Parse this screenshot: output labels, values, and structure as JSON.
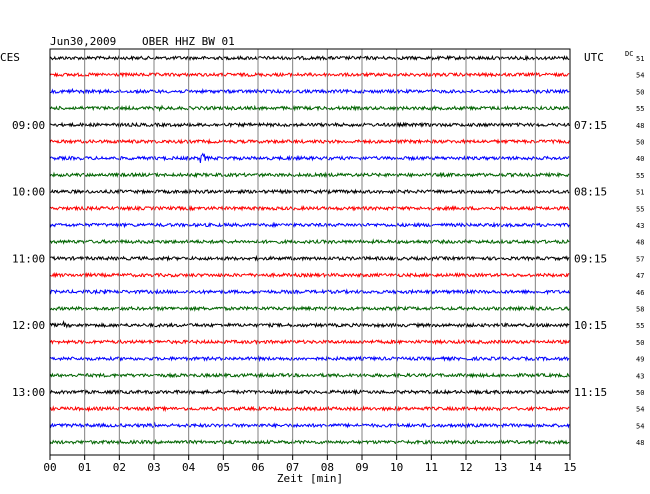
{
  "header": {
    "date": "Jun30,2009",
    "station": "OBER HHZ BW 01",
    "left_tz": "CES",
    "right_tz": "UTC",
    "dc_label": "DC"
  },
  "colors": {
    "cycle": [
      "#000000",
      "#ff0000",
      "#0000ff",
      "#006400"
    ],
    "grid": "#808080",
    "frame": "#000000",
    "text": "#000000"
  },
  "chart_data": {
    "type": "line",
    "title": "Jun30,2009   OBER HHZ BW 01",
    "xlabel": "Zeit [min]",
    "ylabel": "",
    "xlim": [
      0,
      15
    ],
    "x_ticks": [
      "00",
      "01",
      "02",
      "03",
      "04",
      "05",
      "06",
      "07",
      "08",
      "09",
      "10",
      "11",
      "12",
      "13",
      "14",
      "15"
    ],
    "grid": true,
    "trace_count": 24,
    "left_time_labels": [
      {
        "trace": 4,
        "label": "09:00"
      },
      {
        "trace": 8,
        "label": "10:00"
      },
      {
        "trace": 12,
        "label": "11:00"
      },
      {
        "trace": 16,
        "label": "12:00"
      },
      {
        "trace": 20,
        "label": "13:00"
      }
    ],
    "right_time_labels": [
      {
        "trace": 4,
        "label": "07:15"
      },
      {
        "trace": 8,
        "label": "08:15"
      },
      {
        "trace": 12,
        "label": "09:15"
      },
      {
        "trace": 16,
        "label": "10:15"
      },
      {
        "trace": 20,
        "label": "11:15"
      }
    ],
    "dc_offsets": [
      51,
      54,
      50,
      55,
      48,
      50,
      40,
      55,
      51,
      55,
      43,
      48,
      57,
      47,
      46,
      58,
      55,
      50,
      49,
      43,
      50,
      54,
      54,
      48
    ],
    "events": [
      {
        "trace": 2,
        "minute": 0.6,
        "amplitude": 3.5
      },
      {
        "trace": 3,
        "minute": 3.2,
        "amplitude": 2.5
      },
      {
        "trace": 6,
        "minute": 4.35,
        "amplitude": 7
      },
      {
        "trace": 6,
        "minute": 6.95,
        "amplitude": 2.5
      },
      {
        "trace": 14,
        "minute": 1.6,
        "amplitude": 2.5
      },
      {
        "trace": 16,
        "minute": 0.4,
        "amplitude": 3.5
      },
      {
        "trace": 21,
        "minute": 1.0,
        "amplitude": 3.5
      },
      {
        "trace": 22,
        "minute": 3.0,
        "amplitude": 2.5
      }
    ]
  }
}
